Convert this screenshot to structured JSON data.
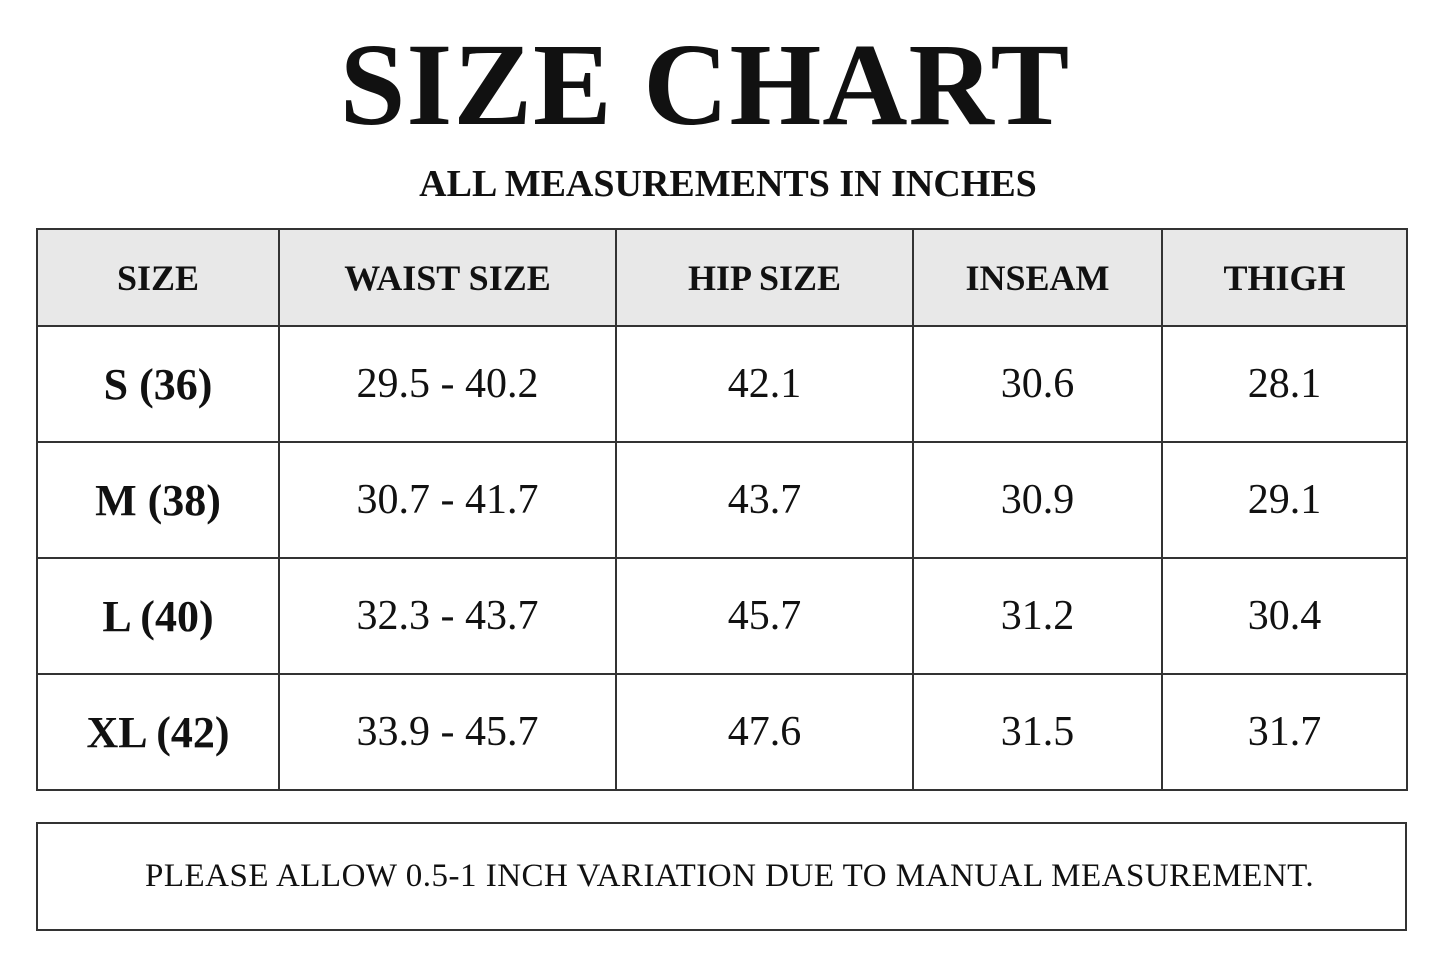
{
  "header": {
    "title": "SIZE CHART",
    "subtitle": "ALL MEASUREMENTS IN INCHES"
  },
  "table": {
    "columns": [
      "SIZE",
      "WAIST SIZE",
      "HIP SIZE",
      "INSEAM",
      "THIGH"
    ],
    "rows": [
      [
        "S (36)",
        "29.5 - 40.2",
        "42.1",
        "30.6",
        "28.1"
      ],
      [
        "M (38)",
        "30.7 - 41.7",
        "43.7",
        "30.9",
        "29.1"
      ],
      [
        "L (40)",
        "32.3 - 43.7",
        "45.7",
        "31.2",
        "30.4"
      ],
      [
        "XL (42)",
        "33.9 - 45.7",
        "47.6",
        "31.5",
        "31.7"
      ]
    ]
  },
  "note": "PLEASE ALLOW 0.5-1 INCH VARIATION DUE TO MANUAL MEASUREMENT."
}
